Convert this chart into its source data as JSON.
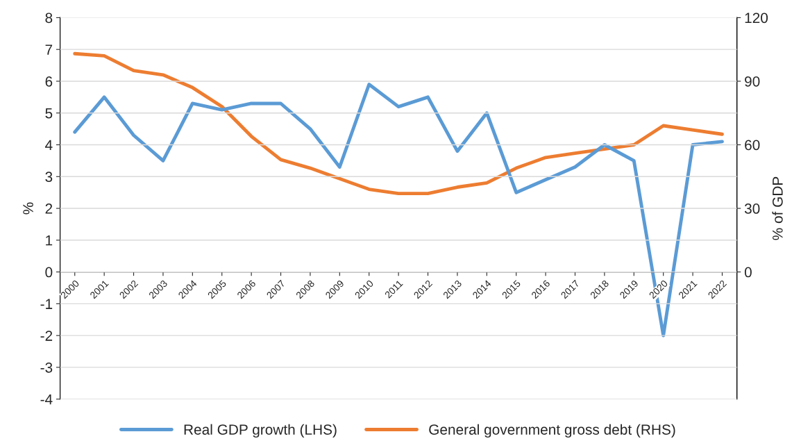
{
  "chart_data": {
    "type": "line",
    "ylabel": "%",
    "y2label": "% of GDP",
    "categories": [
      "2000",
      "2001",
      "2002",
      "2003",
      "2004",
      "2005",
      "2006",
      "2007",
      "2008",
      "2009",
      "2010",
      "2011",
      "2012",
      "2013",
      "2014",
      "2015",
      "2016",
      "2017",
      "2018",
      "2019",
      "2020",
      "2021",
      "2022"
    ],
    "series": [
      {
        "name": "Real GDP growth (LHS)",
        "color": "#5b9bd5",
        "values": [
          4.4,
          5.5,
          4.3,
          3.5,
          5.3,
          5.1,
          5.3,
          5.3,
          4.5,
          3.3,
          5.9,
          5.2,
          5.5,
          3.8,
          5.0,
          2.5,
          2.9,
          3.3,
          4.0,
          3.5,
          -2.0,
          4.0,
          4.1
        ]
      },
      {
        "name": "General government gross debt (RHS)",
        "color": "#ed7d31",
        "axis": "y2",
        "values": [
          103,
          102,
          95,
          93,
          87,
          78,
          64,
          53,
          49,
          44,
          39,
          37,
          37,
          40,
          42,
          49,
          54,
          56,
          58,
          60,
          69,
          67,
          65
        ]
      }
    ],
    "ylim": [
      -4,
      8
    ],
    "yticks": [
      -4,
      -3,
      -2,
      -1,
      0,
      1,
      2,
      3,
      4,
      5,
      6,
      7,
      8
    ],
    "y2lim": [
      -60,
      120
    ],
    "y2ticks": [
      0,
      30,
      60,
      90,
      120
    ],
    "grid": "y",
    "legend": "bottom",
    "marker": "none",
    "line_style": "solid"
  }
}
